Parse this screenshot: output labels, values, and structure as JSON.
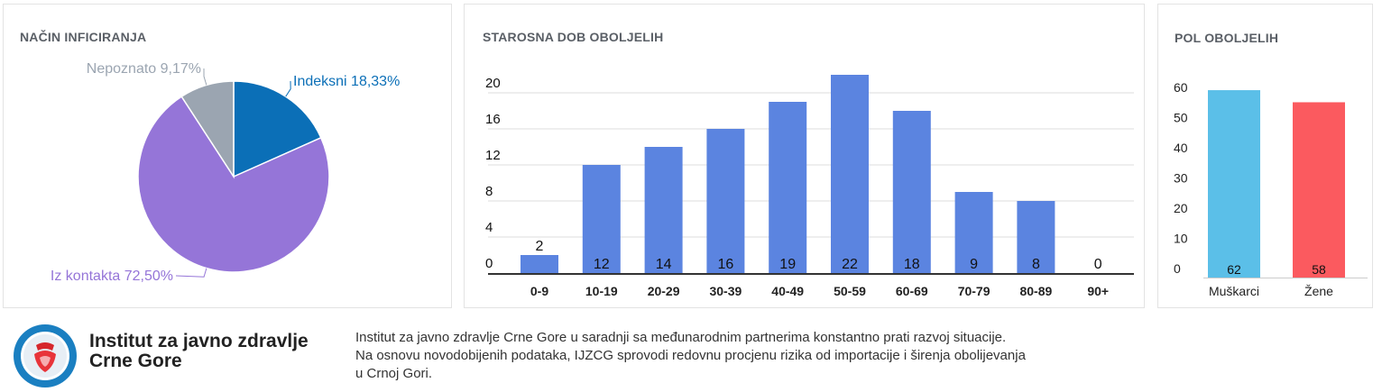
{
  "cards": {
    "pie_title": "NAČIN INFICIRANJA",
    "age_title": "STAROSNA DOB OBOLJELIH",
    "sex_title": "POL OBOLJELIH"
  },
  "chart_data": [
    {
      "type": "pie",
      "title": "NAČIN INFICIRANJA",
      "slices": [
        {
          "label": "Indeksni 18,33%",
          "value": 18.33,
          "color": "#0b6fb7"
        },
        {
          "label": "Iz kontakta 72,50%",
          "value": 72.5,
          "color": "#9575d8"
        },
        {
          "label": "Nepoznato 9,17%",
          "value": 9.17,
          "color": "#9ba5b1"
        }
      ]
    },
    {
      "type": "bar",
      "title": "STAROSNA DOB OBOLJELIH",
      "categories": [
        "0-9",
        "10-19",
        "20-29",
        "30-39",
        "40-49",
        "50-59",
        "60-69",
        "70-79",
        "80-89",
        "90+"
      ],
      "values": [
        2,
        12,
        14,
        16,
        19,
        22,
        18,
        9,
        8,
        0
      ],
      "yticks": [
        0,
        4,
        8,
        12,
        16,
        20
      ],
      "ylim": [
        0,
        23
      ],
      "grid": true,
      "color": "#5b84e0"
    },
    {
      "type": "bar",
      "title": "POL OBOLJELIH",
      "categories": [
        "Muškarci",
        "Žene"
      ],
      "values": [
        62,
        58
      ],
      "colors": [
        "#5bbfe8",
        "#fb5a5f"
      ],
      "yticks": [
        0,
        10,
        20,
        30,
        40,
        50,
        60
      ],
      "ylim": [
        0,
        65
      ],
      "grid": false
    }
  ],
  "footer": {
    "logo_text": "Institut za javno zdravlje Crne Gore",
    "org_line1": "Institut za javno zdravlje",
    "org_line2": "Crne Gore",
    "desc_line1": "Institut za javno zdravlje Crne Gore u saradnji sa međunarodnim partnerima konstantno prati razvoj situacije.",
    "desc_line2": "Na osnovu novodobijenih podataka, IJZCG sprovodi redovnu procjenu rizika od importacije i širenja obolijevanja",
    "desc_line3": "u Crnoj Gori."
  }
}
